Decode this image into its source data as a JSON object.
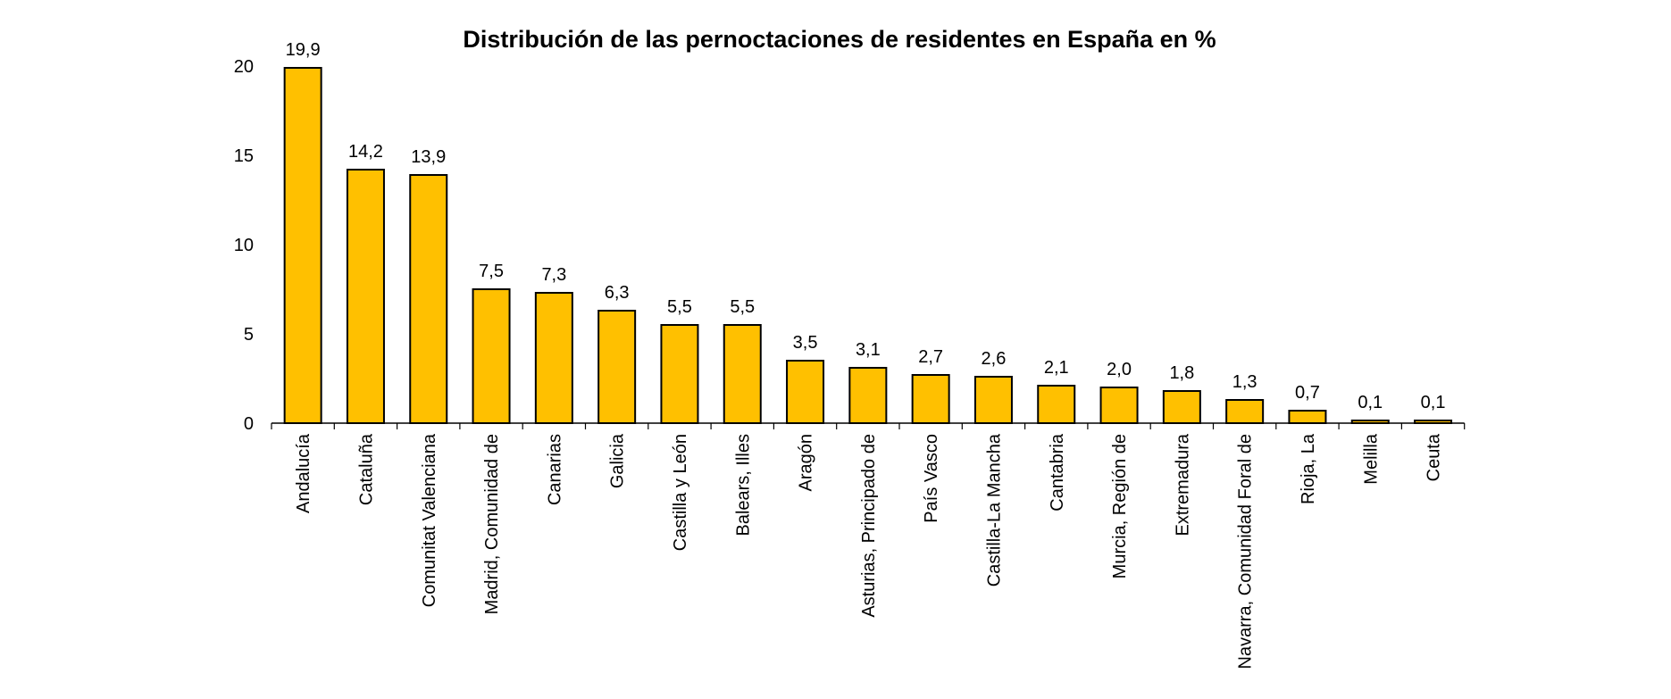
{
  "chart_data": {
    "type": "bar",
    "title": "Distribución de las pernoctaciones de residentes en España en %",
    "xlabel": "",
    "ylabel": "",
    "ylim": [
      0,
      20
    ],
    "yticks": [
      0,
      5,
      10,
      15,
      20
    ],
    "grid": false,
    "legend": "none",
    "bar_color": "#FFC000",
    "bar_edge_color": "#000000",
    "categories": [
      "Andalucía",
      "Cataluña",
      "Comunitat Valenciana",
      "Madrid, Comunidad de",
      "Canarias",
      "Galicia",
      "Castilla y León",
      "Balears, Illes",
      "Aragón",
      "Asturias, Principado de",
      "País Vasco",
      "Castilla-La Mancha",
      "Cantabria",
      "Murcia, Región de",
      "Extremadura",
      "Navarra, Comunidad Foral de",
      "Rioja, La",
      "Melilla",
      "Ceuta"
    ],
    "values": [
      19.9,
      14.2,
      13.9,
      7.5,
      7.3,
      6.3,
      5.5,
      5.5,
      3.5,
      3.1,
      2.7,
      2.6,
      2.1,
      2.0,
      1.8,
      1.3,
      0.7,
      0.1,
      0.1
    ],
    "value_labels": [
      "19,9",
      "14,2",
      "13,9",
      "7,5",
      "7,3",
      "6,3",
      "5,5",
      "5,5",
      "3,5",
      "3,1",
      "2,7",
      "2,6",
      "2,1",
      "2,0",
      "1,8",
      "1,3",
      "0,7",
      "0,1",
      "0,1"
    ]
  }
}
